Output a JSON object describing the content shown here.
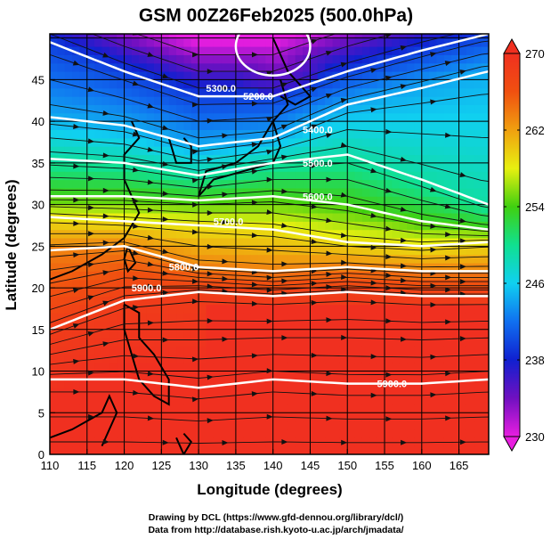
{
  "chart_data": {
    "type": "heatmap",
    "title": "GSM 00Z26Feb2025 (500.0hPa)",
    "xlabel": "Longitude (degrees)",
    "ylabel": "Latitude  (degrees)",
    "xlim": [
      110,
      169
    ],
    "ylim": [
      0,
      50.5
    ],
    "xticks": [
      "110",
      "115",
      "120",
      "125",
      "130",
      "135",
      "140",
      "145",
      "150",
      "155",
      "160",
      "165"
    ],
    "yticks": [
      "0",
      "5",
      "10",
      "15",
      "20",
      "25",
      "30",
      "35",
      "40",
      "45"
    ],
    "colorbar": {
      "range": [
        230,
        270
      ],
      "ticks": [
        "230",
        "238",
        "246",
        "254",
        "262",
        "270"
      ]
    },
    "contour_lons": [
      110,
      120,
      130,
      140,
      150,
      160,
      169
    ],
    "contours": [
      {
        "label": "5300.0",
        "value": 5300,
        "lats": [
          49.5,
          46,
          43,
          43,
          46,
          48.5,
          50.5
        ]
      },
      {
        "label": "5400.0",
        "value": 5400,
        "lats": [
          40.5,
          39.5,
          37,
          38,
          42,
          44,
          46
        ]
      },
      {
        "label": "5500.0",
        "value": 5500,
        "lats": [
          35.5,
          35,
          33.5,
          35,
          36,
          33,
          30
        ]
      },
      {
        "label": "5600.0",
        "value": 5600,
        "lats": [
          31,
          31,
          30.5,
          31,
          30,
          28,
          27
        ]
      },
      {
        "label": "5700.0",
        "value": 5700,
        "lats": [
          28.5,
          28,
          27.5,
          27,
          25.5,
          25,
          25.5
        ]
      },
      {
        "label": "5800.0",
        "value": 5800,
        "lats": [
          24.5,
          25,
          22.5,
          22,
          22.5,
          22,
          22
        ]
      },
      {
        "label": "5900.0",
        "value": 5900,
        "lats": [
          15,
          18.5,
          19.5,
          19,
          19.5,
          19,
          19
        ]
      },
      {
        "label": "5900.0",
        "value": 5900,
        "lats": [
          9,
          9,
          8,
          9,
          8.5,
          8.5,
          9
        ]
      }
    ],
    "closed_low": {
      "label": "5200.0",
      "value": 5200,
      "center": [
        140,
        49
      ],
      "lon_radius": 5,
      "lat_radius": 3.5
    },
    "contour_label_positions": [
      [
        138,
        43
      ],
      [
        133,
        44
      ],
      [
        146,
        39
      ],
      [
        146,
        35
      ],
      [
        146,
        31
      ],
      [
        134,
        28
      ],
      [
        128,
        22.5
      ],
      [
        123,
        20
      ],
      [
        156,
        8.5
      ]
    ]
  },
  "footer": {
    "line1": "Drawing by DCL (https://www.gfd-dennou.org/library/dcl/)",
    "line2": "Data from http://database.rish.kyoto-u.ac.jp/arch/jmadata/"
  }
}
